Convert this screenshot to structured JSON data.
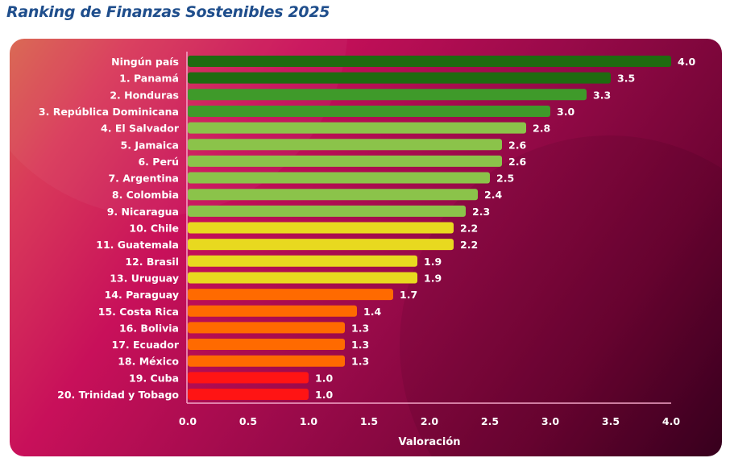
{
  "chart_data": {
    "type": "bar",
    "orientation": "horizontal",
    "title": "Ranking de Finanzas Sostenibles 2025",
    "xlabel": "Valoración",
    "ylabel": "",
    "xlim": [
      0,
      4.0
    ],
    "xticks": [
      "0.0",
      "0.5",
      "1.0",
      "1.5",
      "2.0",
      "2.5",
      "3.0",
      "3.5",
      "4.0"
    ],
    "grid": false,
    "categories": [
      "Ningún país",
      "1. Panamá",
      "2. Honduras",
      "3. República Dominicana",
      "4. El Salvador",
      "5. Jamaica",
      "6. Perú",
      "7. Argentina",
      "8. Colombia",
      "9. Nicaragua",
      "10. Chile",
      "11. Guatemala",
      "12. Brasil",
      "13. Uruguay",
      "14. Paraguay",
      "15. Costa Rica",
      "16. Bolivia",
      "17. Ecuador",
      "18. México",
      "19. Cuba",
      "20. Trinidad y Tobago"
    ],
    "values": [
      4.0,
      3.5,
      3.3,
      3.0,
      2.8,
      2.6,
      2.6,
      2.5,
      2.4,
      2.3,
      2.2,
      2.2,
      1.9,
      1.9,
      1.7,
      1.4,
      1.3,
      1.3,
      1.3,
      1.0,
      1.0
    ],
    "labels": [
      "4.0",
      "3.5",
      "3.3",
      "3.0",
      "2.8",
      "2.6",
      "2.6",
      "2.5",
      "2.4",
      "2.3",
      "2.2",
      "2.2",
      "1.9",
      "1.9",
      "1.7",
      "1.4",
      "1.3",
      "1.3",
      "1.3",
      "1.0",
      "1.0"
    ],
    "colors": [
      "#1f6b10",
      "#1f6b10",
      "#3f9a2a",
      "#3f9a2a",
      "#8bc34a",
      "#8bc34a",
      "#8bc34a",
      "#8bc34a",
      "#8bc34a",
      "#8bc34a",
      "#e8d91f",
      "#e8d91f",
      "#e8d91f",
      "#e8d91f",
      "#ff6a00",
      "#ff6a00",
      "#ff6a00",
      "#ff6a00",
      "#ff6a00",
      "#ff1414",
      "#ff1414"
    ]
  }
}
